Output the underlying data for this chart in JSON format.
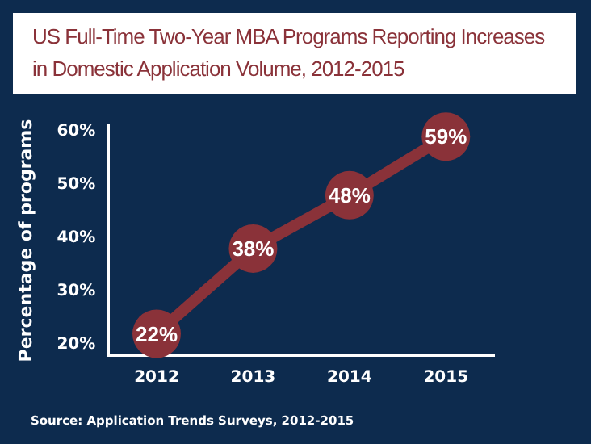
{
  "chart_data": {
    "type": "line",
    "title": "US Full-Time Two-Year MBA Programs Reporting Increases in Domestic Application Volume, 2012-2015",
    "ylabel": "Percentage of programs",
    "annotations": [
      "Source: Application Trends Surveys, 2012-2015"
    ],
    "categories": [
      "2012",
      "2013",
      "2014",
      "2015"
    ],
    "series": [
      {
        "color": "#8a3239",
        "values": [
          22,
          38,
          48,
          59
        ],
        "value_labels": [
          "22%",
          "38%",
          "48%",
          "59%"
        ]
      }
    ],
    "ylim": [
      18,
      61
    ],
    "yticks": [
      {
        "value": 20,
        "label": "20%"
      },
      {
        "value": 30,
        "label": "30%"
      },
      {
        "value": 40,
        "label": "40%"
      },
      {
        "value": 50,
        "label": "50%"
      },
      {
        "value": 60,
        "label": "60%"
      }
    ],
    "grid": false,
    "legend": false,
    "marker": "circle",
    "line_style": "solid"
  }
}
